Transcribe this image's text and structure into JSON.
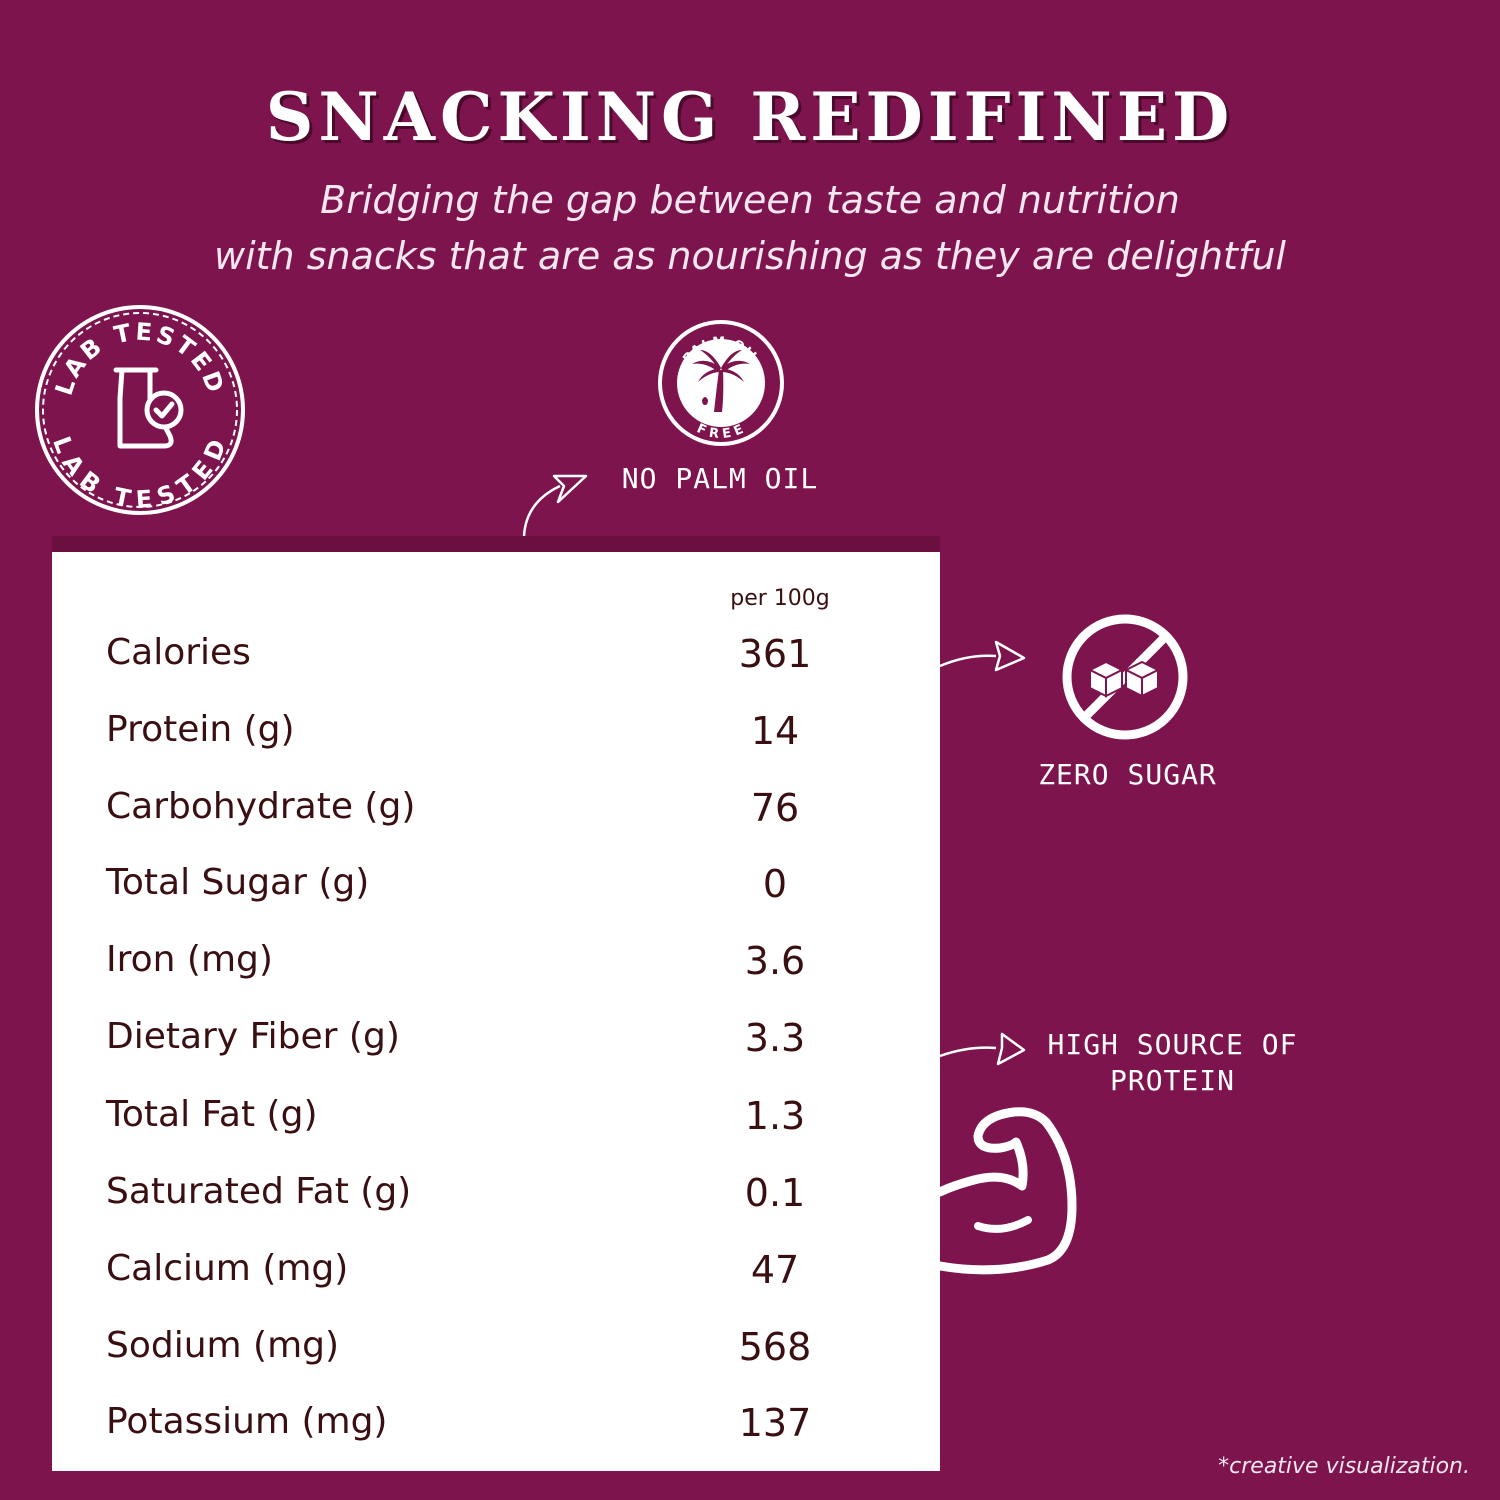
{
  "header": {
    "title": "SNACKING REDIFINED",
    "subtitle_line1": "Bridging the gap between taste and nutrition",
    "subtitle_line2": "with snacks that are as nourishing as they are delightful"
  },
  "badges": {
    "lab_tested": {
      "text": "LAB TESTED",
      "icon": "flask-check-icon"
    },
    "palm_oil": {
      "top": "PALM OIL",
      "bottom": "FREE",
      "label": "NO PALM OIL",
      "icon": "palm-tree-icon"
    },
    "zero_sugar": {
      "label": "ZERO SUGAR",
      "icon": "no-sugar-cubes-icon"
    },
    "protein": {
      "label_line1": "HIGH SOURCE OF",
      "label_line2": "PROTEIN",
      "icon": "flexed-arm-icon"
    }
  },
  "nutrition": {
    "per_label": "per 100g",
    "rows": [
      {
        "name": "Calories",
        "value": "361"
      },
      {
        "name": "Protein (g)",
        "value": "14"
      },
      {
        "name": "Carbohydrate (g)",
        "value": "76"
      },
      {
        "name": "Total Sugar (g)",
        "value": "0"
      },
      {
        "name": "Iron (mg)",
        "value": "3.6"
      },
      {
        "name": "Dietary Fiber (g)",
        "value": "3.3"
      },
      {
        "name": "Total Fat (g)",
        "value": "1.3"
      },
      {
        "name": "Saturated Fat (g)",
        "value": "0.1"
      },
      {
        "name": "Calcium (mg)",
        "value": "47"
      },
      {
        "name": "Sodium (mg)",
        "value": "568"
      },
      {
        "name": "Potassium (mg)",
        "value": "137"
      }
    ]
  },
  "footnote": "*creative visualization.",
  "colors": {
    "background": "#7e144d",
    "panel": "#ffffff",
    "text_dark": "#3a0f12",
    "accent_dark": "#6a0f3f"
  }
}
